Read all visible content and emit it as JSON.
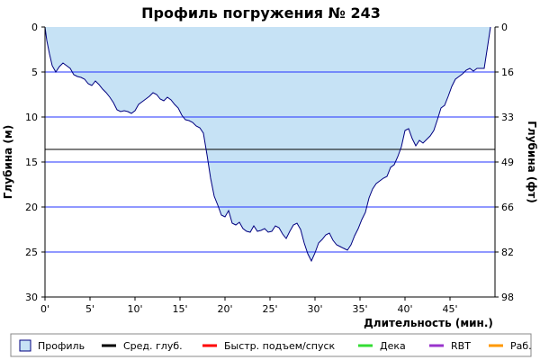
{
  "chart_data": {
    "type": "area",
    "title": "Профиль погружения № 243",
    "xlabel": "Длительность (мин.)",
    "ylabel_left": "Глубина (м)",
    "ylabel_right": "Глубина (фт)",
    "xlim": [
      0,
      50
    ],
    "ylim": [
      0,
      30
    ],
    "y_inverted": true,
    "x_ticks": [
      0,
      5,
      10,
      15,
      20,
      25,
      30,
      35,
      40,
      45
    ],
    "x_tick_labels": [
      "0'",
      "5'",
      "10'",
      "15'",
      "20'",
      "25'",
      "30'",
      "35'",
      "40'",
      "45'"
    ],
    "y_ticks_left": [
      0,
      5,
      10,
      15,
      20,
      25,
      30
    ],
    "y_tick_labels_left": [
      "0",
      "5",
      "10",
      "15",
      "20",
      "25",
      "30"
    ],
    "y_tick_labels_right": [
      "0",
      "16",
      "33",
      "49",
      "66",
      "82",
      "98"
    ],
    "grid": true,
    "colors": {
      "fill": "#c6e2f5",
      "profile_line": "#000080",
      "grid": "#2233ff",
      "avg_line": "#000000"
    },
    "average_depth": 13.6,
    "series": [
      {
        "name": "Профиль",
        "x": [
          0,
          0.2,
          0.5,
          0.8,
          1.2,
          1.6,
          2.0,
          2.4,
          2.8,
          3.2,
          3.6,
          4.0,
          4.4,
          4.8,
          5.2,
          5.6,
          6.0,
          6.4,
          6.8,
          7.2,
          7.6,
          8.0,
          8.4,
          8.8,
          9.2,
          9.6,
          10.0,
          10.4,
          10.8,
          11.2,
          11.6,
          12.0,
          12.4,
          12.8,
          13.2,
          13.6,
          14.0,
          14.4,
          14.8,
          15.2,
          15.6,
          16.0,
          16.4,
          16.8,
          17.2,
          17.6,
          18.0,
          18.4,
          18.8,
          19.2,
          19.6,
          20.0,
          20.4,
          20.8,
          21.2,
          21.6,
          22.0,
          22.4,
          22.8,
          23.2,
          23.6,
          24.0,
          24.4,
          24.8,
          25.2,
          25.6,
          26.0,
          26.4,
          26.8,
          27.2,
          27.6,
          28.0,
          28.4,
          28.8,
          29.2,
          29.6,
          30.0,
          30.4,
          30.8,
          31.2,
          31.6,
          32.0,
          32.4,
          32.8,
          33.2,
          33.6,
          34.0,
          34.4,
          34.8,
          35.2,
          35.6,
          36.0,
          36.4,
          36.8,
          37.2,
          37.6,
          38.0,
          38.4,
          38.8,
          39.2,
          39.6,
          40.0,
          40.4,
          40.8,
          41.2,
          41.6,
          42.0,
          42.4,
          42.8,
          43.2,
          43.6,
          44.0,
          44.4,
          44.8,
          45.2,
          45.6,
          46.0,
          46.4,
          46.8,
          47.2,
          47.6,
          48.0,
          48.4,
          48.8,
          49.2,
          49.5
        ],
        "y": [
          0,
          1.5,
          3.0,
          4.3,
          5.0,
          4.4,
          4.0,
          4.3,
          4.6,
          5.3,
          5.5,
          5.6,
          5.8,
          6.3,
          6.5,
          6.0,
          6.4,
          6.9,
          7.3,
          7.8,
          8.4,
          9.2,
          9.4,
          9.3,
          9.4,
          9.6,
          9.3,
          8.6,
          8.3,
          8.0,
          7.7,
          7.3,
          7.5,
          8.0,
          8.2,
          7.8,
          8.1,
          8.6,
          9.0,
          9.8,
          10.3,
          10.4,
          10.6,
          11.0,
          11.2,
          11.8,
          14.2,
          16.8,
          18.8,
          19.8,
          20.9,
          21.1,
          20.4,
          21.8,
          22.0,
          21.7,
          22.4,
          22.7,
          22.8,
          22.1,
          22.7,
          22.6,
          22.4,
          22.8,
          22.7,
          22.1,
          22.3,
          23.0,
          23.5,
          22.7,
          22.0,
          21.8,
          22.5,
          24.0,
          25.2,
          26.0,
          25.1,
          24.0,
          23.6,
          23.1,
          22.9,
          23.7,
          24.2,
          24.4,
          24.6,
          24.8,
          24.2,
          23.2,
          22.4,
          21.4,
          20.6,
          19.0,
          18.0,
          17.4,
          17.1,
          16.8,
          16.6,
          15.6,
          15.3,
          14.4,
          13.3,
          11.5,
          11.3,
          12.4,
          13.2,
          12.6,
          12.9,
          12.5,
          12.1,
          11.5,
          10.3,
          9.0,
          8.7,
          7.7,
          6.6,
          5.8,
          5.5,
          5.2,
          4.8,
          4.6,
          4.9,
          4.6,
          4.6,
          4.6,
          2.0,
          0
        ]
      }
    ],
    "legend": {
      "placement": "bottom",
      "items": [
        {
          "label": "Профиль",
          "color": "#c6e2f5",
          "kind": "box"
        },
        {
          "label": "Сред. глуб.",
          "color": "#000000",
          "kind": "line"
        },
        {
          "label": "Быстр. подъем/спуск",
          "color": "#ff0000",
          "kind": "line"
        },
        {
          "label": "Дека",
          "color": "#33dd33",
          "kind": "line"
        },
        {
          "label": "RBT",
          "color": "#9933cc",
          "kind": "line"
        },
        {
          "label": "Раб.",
          "color": "#ff9900",
          "kind": "line"
        }
      ]
    }
  }
}
